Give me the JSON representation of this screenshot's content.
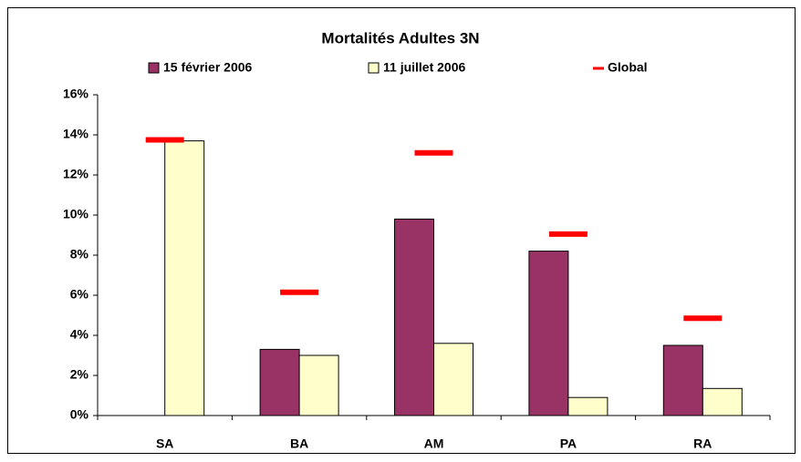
{
  "chart_data": {
    "type": "bar",
    "title": "Mortalités Adultes 3N",
    "categories": [
      "SA",
      "BA",
      "AM",
      "PA",
      "RA"
    ],
    "series": [
      {
        "name": "15 février 2006",
        "color": "#993366",
        "values": [
          null,
          3.3,
          9.8,
          8.2,
          3.5
        ]
      },
      {
        "name": "11 juillet 2006",
        "color": "#ffffcc",
        "values": [
          13.7,
          3.0,
          3.6,
          0.9,
          1.35
        ]
      },
      {
        "name": "Global",
        "color": "#ff0000",
        "type": "marker",
        "values": [
          13.75,
          6.15,
          13.1,
          9.05,
          4.85
        ]
      }
    ],
    "ylim": [
      0,
      16
    ],
    "yticks": [
      {
        "value": 0,
        "label": "0%"
      },
      {
        "value": 2,
        "label": "2%"
      },
      {
        "value": 4,
        "label": "4%"
      },
      {
        "value": 6,
        "label": "6%"
      },
      {
        "value": 8,
        "label": "8%"
      },
      {
        "value": 10,
        "label": "10%"
      },
      {
        "value": 12,
        "label": "12%"
      },
      {
        "value": 14,
        "label": "14%"
      },
      {
        "value": 16,
        "label": "16%"
      }
    ],
    "grid": false
  }
}
